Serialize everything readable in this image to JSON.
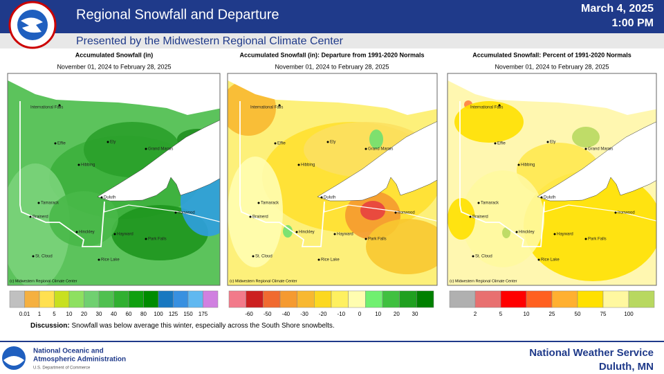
{
  "header": {
    "title": "Regional Snowfall and Departure",
    "date": "March 4, 2025",
    "time": "1:00 PM",
    "subtitle": "Presented by the Midwestern Regional Climate Center"
  },
  "maps": {
    "cities": [
      "International Falls",
      "Effie",
      "Ely",
      "Grand Marais",
      "Hibbing",
      "Duluth",
      "Tamarack",
      "Brainerd",
      "Ironwood",
      "Hinckley",
      "Hayward",
      "Park Falls",
      "St. Cloud",
      "Rice Lake"
    ],
    "copyright": "(c) Midwestern Regional Climate Center",
    "panels": [
      {
        "title": "Accumulated Snowfall (in)",
        "period": "November 01, 2024 to February 28, 2025",
        "legend": {
          "labels": [
            "0.01",
            "1",
            "5",
            "10",
            "20",
            "30",
            "40",
            "60",
            "80",
            "100",
            "125",
            "150",
            "175"
          ],
          "colors": [
            "#c0c0c0",
            "#f5b040",
            "#ffe050",
            "#c8e020",
            "#8ee060",
            "#70d070",
            "#50c050",
            "#30b030",
            "#10a010",
            "#008c00",
            "#1878c0",
            "#3890e0",
            "#60b8f0",
            "#d080e0"
          ]
        }
      },
      {
        "title": "Accumulated Snowfall (in): Departure from 1991-2020 Normals",
        "period": "November 01, 2024 to February 28, 2025",
        "legend": {
          "labels": [
            "-60",
            "-50",
            "-40",
            "-30",
            "-20",
            "-10",
            "0",
            "10",
            "20",
            "30"
          ],
          "colors": [
            "#f27a8a",
            "#cc2020",
            "#f06a30",
            "#f59a30",
            "#f8b830",
            "#fcd820",
            "#fef060",
            "#fffdb0",
            "#70f070",
            "#40c040",
            "#20a020",
            "#008000"
          ]
        }
      },
      {
        "title": "Accumulated Snowfall: Percent of 1991-2020 Normals",
        "period": "November 01, 2024 to February 28, 2025",
        "legend": {
          "labels": [
            "2",
            "5",
            "10",
            "25",
            "50",
            "75",
            "100"
          ],
          "colors": [
            "#b0b0b0",
            "#e87070",
            "#ff0000",
            "#ff6020",
            "#ffb030",
            "#ffe000",
            "#fff8a0",
            "#b8d860"
          ]
        }
      }
    ]
  },
  "discussion": {
    "label": "Discussion:",
    "text": "Snowfall was below average this winter, especially across the South Shore snowbelts."
  },
  "footer": {
    "noaa_line1": "National Oceanic and",
    "noaa_line2": "Atmospheric Administration",
    "noaa_line3": "U.S. Department of Commerce",
    "nws": "National Weather Service",
    "office": "Duluth, MN"
  }
}
